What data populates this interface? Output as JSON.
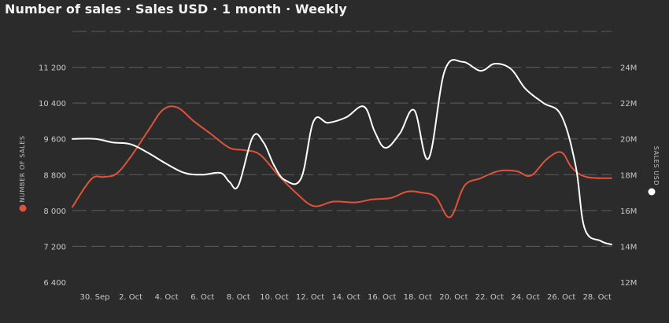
{
  "title": "Number of sales · Sales USD · 1 month · Weekly",
  "colors": {
    "background": "#2b2b2b",
    "sales_count": "#e0533a",
    "sales_usd": "#ffffff",
    "grid": "#5e5e5e"
  },
  "chart_data": {
    "type": "line",
    "title": "Number of sales · Sales USD · 1 month · Weekly",
    "x_tick_labels": [
      "30. Sep",
      "2. Oct",
      "4. Oct",
      "6. Oct",
      "8. Oct",
      "10. Oct",
      "12. Oct",
      "14. Oct",
      "16. Oct",
      "18. Oct",
      "20. Oct",
      "22. Oct",
      "24. Oct",
      "26. Oct",
      "28. Oct"
    ],
    "x_range": [
      -1.25,
      28.8
    ],
    "y_left": {
      "label": "NUMBER OF SALES",
      "range": [
        6400,
        12000
      ],
      "ticks": [
        6400,
        7200,
        8000,
        8800,
        9600,
        10400,
        11200
      ]
    },
    "y_right": {
      "label": "SALES USD",
      "range": [
        12,
        26
      ],
      "ticks": [
        "12M",
        "14M",
        "16M",
        "18M",
        "20M",
        "22M",
        "24M"
      ],
      "tick_values": [
        12,
        14,
        16,
        18,
        20,
        22,
        24
      ]
    },
    "grid": true,
    "legend": "axis-labels",
    "series": [
      {
        "name": "NUMBER OF SALES",
        "axis": "left",
        "x": [
          -1.25,
          -0.2,
          0.5,
          1.2,
          2,
          3,
          3.8,
          4.6,
          5.5,
          6.5,
          7.5,
          8.3,
          9.2,
          10.2,
          11.2,
          12.2,
          13.3,
          14.5,
          15.5,
          16.5,
          17.4,
          18.2,
          19,
          19.8,
          20.6,
          21.5,
          22.5,
          23.5,
          24.3,
          25.2,
          26,
          26.6,
          27.4,
          28.8
        ],
        "y": [
          8080,
          8700,
          8750,
          8820,
          9200,
          9800,
          10250,
          10300,
          10000,
          9700,
          9400,
          9350,
          9250,
          8800,
          8400,
          8100,
          8200,
          8180,
          8250,
          8280,
          8420,
          8400,
          8300,
          7850,
          8550,
          8720,
          8880,
          8880,
          8780,
          9150,
          9300,
          8950,
          8750,
          8720
        ]
      },
      {
        "name": "SALES USD",
        "axis": "right",
        "x": [
          -1.25,
          0,
          1,
          2,
          3,
          4,
          5,
          6,
          7,
          7.5,
          8,
          8.8,
          9.4,
          10,
          10.6,
          11.5,
          12.2,
          13,
          14,
          15,
          15.6,
          16.2,
          17,
          17.8,
          18.6,
          19.5,
          20.5,
          21.5,
          22.3,
          23.2,
          24,
          25,
          26,
          26.8,
          27.3,
          28.2,
          28.8
        ],
        "y": [
          20,
          20,
          19.8,
          19.7,
          19.2,
          18.6,
          18.1,
          18,
          18.1,
          17.6,
          17.4,
          20.1,
          19.8,
          18.5,
          17.7,
          17.8,
          21,
          20.9,
          21.2,
          21.8,
          20.4,
          19.5,
          20.3,
          21.6,
          18.9,
          23.8,
          24.3,
          23.8,
          24.2,
          23.9,
          22.8,
          22,
          21.3,
          18.5,
          15,
          14.3,
          14.1
        ]
      }
    ]
  }
}
